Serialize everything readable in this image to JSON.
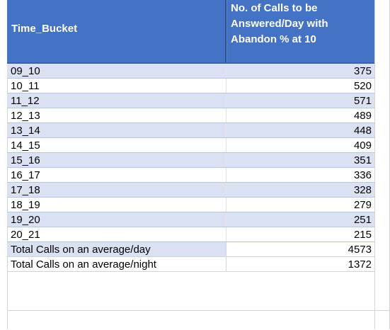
{
  "sheet": {
    "header": {
      "col_a": "Time_Bucket",
      "col_b": "No. of Calls to be\nAnswered/Day with\nAbandon % at 10"
    },
    "rows": [
      {
        "bucket": "09_10",
        "calls": "375"
      },
      {
        "bucket": "10_11",
        "calls": "520"
      },
      {
        "bucket": "11_12",
        "calls": "571"
      },
      {
        "bucket": "12_13",
        "calls": "489"
      },
      {
        "bucket": "13_14",
        "calls": "448"
      },
      {
        "bucket": "14_15",
        "calls": "409"
      },
      {
        "bucket": "15_16",
        "calls": "351"
      },
      {
        "bucket": "16_17",
        "calls": "336"
      },
      {
        "bucket": "17_18",
        "calls": "328"
      },
      {
        "bucket": "18_19",
        "calls": "279"
      },
      {
        "bucket": "19_20",
        "calls": "251"
      },
      {
        "bucket": "20_21",
        "calls": "215"
      }
    ],
    "totals": [
      {
        "label": "Total Calls on an average/day",
        "value": "4573"
      },
      {
        "label": "Total Calls on an average/night",
        "value": "1372"
      }
    ],
    "colors": {
      "header_bg": "#4472c4",
      "band_bg": "#d9e1f2",
      "gridline": "#d4d4d4"
    }
  }
}
